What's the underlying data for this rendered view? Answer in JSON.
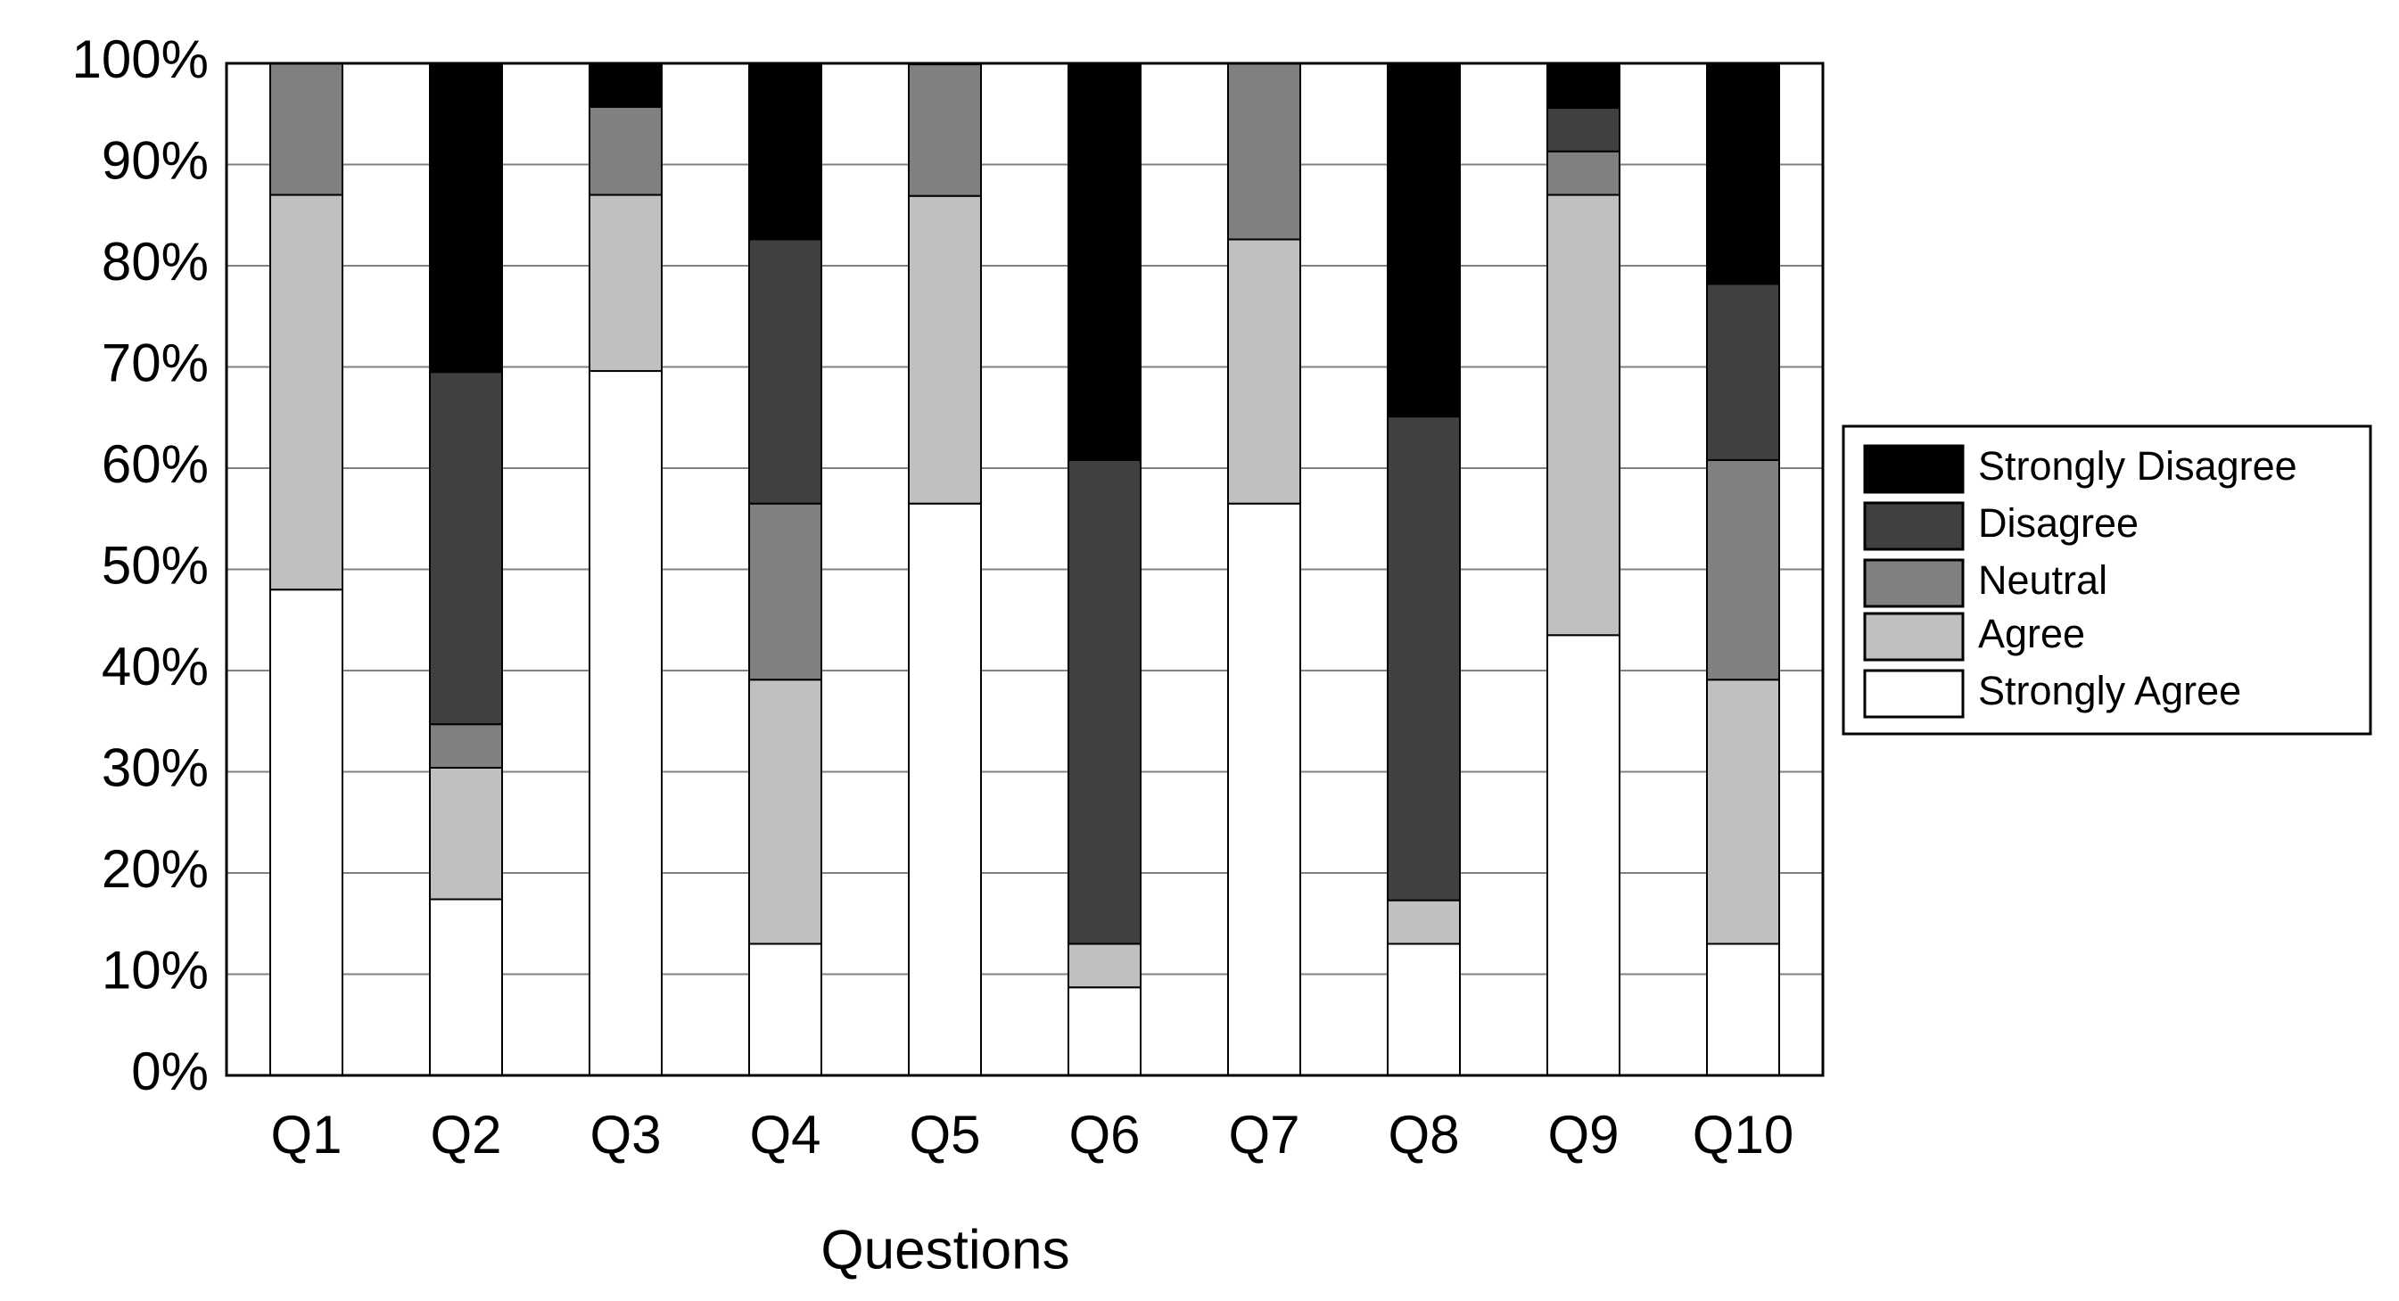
{
  "chart_data": {
    "type": "stacked_bar",
    "x_label": "Questions",
    "categories": [
      "Q1",
      "Q2",
      "Q3",
      "Q4",
      "Q5",
      "Q6",
      "Q7",
      "Q8",
      "Q9",
      "Q10"
    ],
    "series": [
      {
        "name": "Strongly Agree",
        "color": "#ffffff",
        "values": [
          48,
          17.4,
          69.6,
          13,
          56.5,
          8.7,
          56.5,
          13,
          43.5,
          13
        ]
      },
      {
        "name": "Agree",
        "color": "#c0c0c0",
        "values": [
          39,
          13,
          17.4,
          26.1,
          30.4,
          4.3,
          26.1,
          4.3,
          43.5,
          26.1
        ]
      },
      {
        "name": "Neutral",
        "color": "#808080",
        "values": [
          13,
          4.3,
          8.7,
          17.4,
          13,
          0,
          17.4,
          0,
          4.3,
          21.7
        ]
      },
      {
        "name": "Disagree",
        "color": "#404040",
        "values": [
          0,
          34.8,
          0,
          26.1,
          0,
          47.8,
          0,
          47.8,
          4.3,
          17.4
        ]
      },
      {
        "name": "Strongly Disagree",
        "color": "#000000",
        "values": [
          0,
          30.4,
          4.3,
          17.4,
          0,
          39.1,
          0,
          34.8,
          4.3,
          21.7
        ]
      }
    ],
    "ylim": [
      0,
      100
    ],
    "yticks": [
      {
        "value": 0,
        "label": "0%"
      },
      {
        "value": 10,
        "label": "10%"
      },
      {
        "value": 20,
        "label": "20%"
      },
      {
        "value": 30,
        "label": "30%"
      },
      {
        "value": 40,
        "label": "40%"
      },
      {
        "value": 50,
        "label": "50%"
      },
      {
        "value": 60,
        "label": "60%"
      },
      {
        "value": 70,
        "label": "70%"
      },
      {
        "value": 80,
        "label": "80%"
      },
      {
        "value": 90,
        "label": "90%"
      },
      {
        "value": 100,
        "label": "100%"
      }
    ],
    "grid": true,
    "legend_position": "right"
  }
}
